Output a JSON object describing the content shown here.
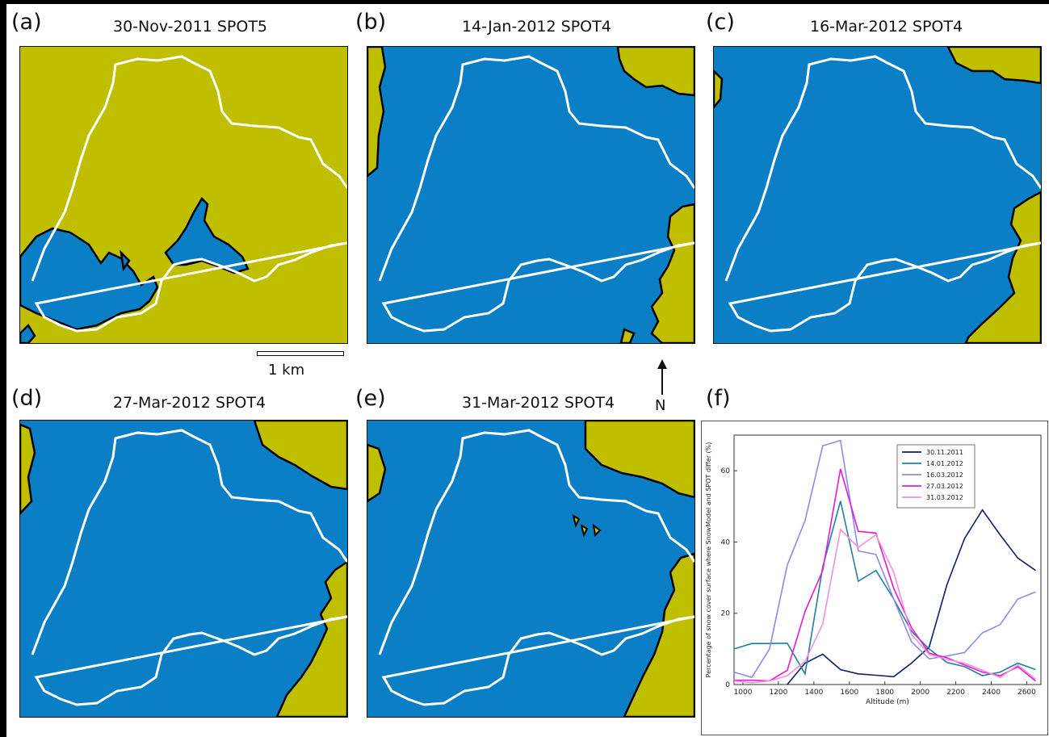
{
  "colors": {
    "snow": "#0b7fc6",
    "no_snow": "#bfbf00",
    "boundary": "#ffffff",
    "outline": "#000000"
  },
  "panels": [
    {
      "letter": "(a)",
      "title": "30-Nov-2011 SPOT5"
    },
    {
      "letter": "(b)",
      "title": "14-Jan-2012 SPOT4"
    },
    {
      "letter": "(c)",
      "title": "16-Mar-2012 SPOT4"
    },
    {
      "letter": "(d)",
      "title": "27-Mar-2012 SPOT4"
    },
    {
      "letter": "(e)",
      "title": "31-Mar-2012 SPOT4"
    },
    {
      "letter": "(f)",
      "title": ""
    }
  ],
  "scale_label": "1 km",
  "north_label": "N",
  "chart_data": {
    "type": "line",
    "xlabel": "Altitude (m)",
    "ylabel": "Percentage of snow cover surface where SnowModel and SPOT differ (%)",
    "xlim": [
      950,
      2680
    ],
    "ylim": [
      0,
      70
    ],
    "xticks": [
      1000,
      1200,
      1400,
      1600,
      1800,
      2000,
      2200,
      2400,
      2600
    ],
    "yticks": [
      0,
      20,
      40,
      60
    ],
    "grid": false,
    "legend_position": "top-center",
    "x": [
      950,
      1050,
      1150,
      1250,
      1350,
      1450,
      1550,
      1650,
      1750,
      1850,
      1950,
      2050,
      2150,
      2250,
      2350,
      2450,
      2550,
      2650
    ],
    "series": [
      {
        "name": "30.11.2011",
        "color": "#0d1f6e",
        "values": [
          null,
          null,
          null,
          0,
          6,
          8.5,
          4.2,
          3,
          2.6,
          2.2,
          6,
          10.5,
          28,
          41,
          49,
          42,
          35.5,
          32
        ]
      },
      {
        "name": "14.01.2012",
        "color": "#1f7fa3",
        "values": [
          10,
          11.5,
          11.5,
          11.6,
          3,
          33,
          51.5,
          29,
          32,
          24,
          15,
          10,
          6.2,
          5,
          2.5,
          3.5,
          6,
          4.2
        ]
      },
      {
        "name": "16.03.2012",
        "color": "#8a8aea",
        "values": [
          3.5,
          2,
          10,
          33.5,
          46,
          67,
          68.5,
          37.5,
          36.5,
          24,
          12,
          7.2,
          8,
          9,
          14.5,
          16.8,
          24,
          26
        ]
      },
      {
        "name": "27.03.2012",
        "color": "#e21bd6",
        "values": [
          1.2,
          1.2,
          1,
          4,
          20.5,
          32,
          60.5,
          43,
          42.5,
          27,
          16,
          8.8,
          7.5,
          5.5,
          3.5,
          2.5,
          5,
          1
        ]
      },
      {
        "name": "31.03.2012",
        "color": "#f48fdb",
        "values": [
          1,
          0.5,
          1,
          2.5,
          6.5,
          17,
          43.5,
          38.5,
          42,
          31.5,
          14,
          8.5,
          7,
          6,
          4,
          2,
          5.5,
          1.5
        ]
      }
    ]
  }
}
